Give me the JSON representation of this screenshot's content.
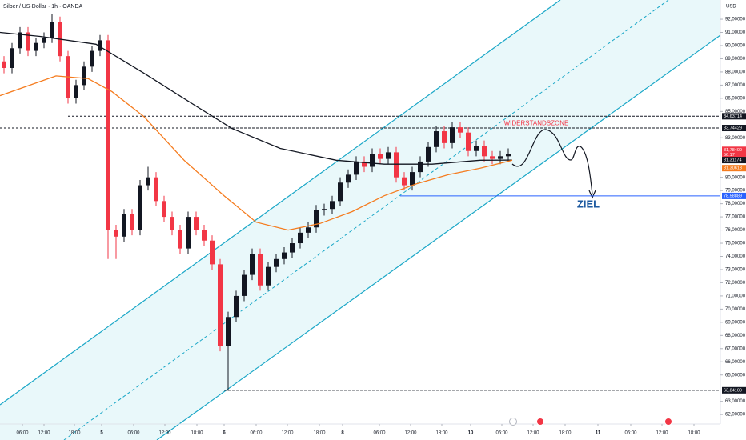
{
  "chart_data": {
    "type": "candlestick",
    "title": "Silber / US-Dollar · 1h · OANDA",
    "y_unit": "USD",
    "up_color": "#131722",
    "down_color": "#f23645",
    "x": [
      0,
      1,
      2,
      3,
      4,
      5,
      6,
      7,
      8,
      9,
      10,
      11,
      12,
      13,
      14,
      15,
      16,
      17,
      18,
      19,
      20,
      21,
      22,
      23,
      24,
      25,
      26,
      27,
      28,
      29,
      30,
      31,
      32,
      33,
      34,
      35,
      36,
      37,
      38,
      39,
      40,
      41,
      42,
      43,
      44,
      45,
      46,
      47,
      48,
      49,
      50,
      51,
      52,
      53,
      54,
      55,
      56,
      57,
      58,
      59,
      60,
      61,
      62,
      63
    ],
    "open": [
      88.8,
      88.3,
      89.8,
      91.0,
      89.6,
      90.2,
      90.6,
      91.8,
      89.2,
      86.0,
      87.0,
      88.4,
      89.6,
      90.4,
      76.0,
      75.5,
      77.2,
      76.0,
      79.4,
      80.0,
      78.2,
      77.0,
      76.0,
      74.6,
      77.0,
      76.0,
      75.2,
      73.4,
      67.2,
      69.4,
      71.0,
      72.6,
      74.2,
      71.8,
      73.2,
      73.8,
      74.3,
      75.0,
      75.8,
      76.2,
      77.5,
      77.6,
      78.2,
      79.6,
      80.2,
      81.2,
      80.8,
      81.8,
      81.4,
      81.9,
      80.0,
      79.4,
      80.4,
      81.2,
      82.3,
      83.5,
      82.6,
      83.8,
      83.4,
      82.0,
      82.4,
      81.6,
      81.4,
      81.6
    ],
    "high": [
      89.2,
      90.2,
      91.4,
      91.4,
      90.6,
      91.0,
      92.4,
      92.2,
      89.6,
      87.4,
      88.8,
      90.0,
      90.8,
      90.8,
      76.4,
      77.6,
      77.6,
      79.8,
      80.8,
      80.4,
      78.6,
      77.4,
      76.4,
      77.4,
      77.4,
      76.4,
      75.6,
      73.8,
      69.8,
      71.4,
      73.0,
      74.6,
      74.6,
      73.6,
      74.2,
      74.7,
      75.4,
      76.2,
      76.6,
      77.9,
      78.0,
      78.6,
      80.0,
      80.6,
      81.6,
      81.6,
      82.2,
      82.2,
      82.3,
      82.3,
      80.4,
      80.8,
      81.6,
      82.7,
      83.9,
      83.9,
      84.2,
      84.2,
      83.8,
      82.8,
      82.8,
      82.0,
      82.0,
      82.2
    ],
    "low": [
      87.9,
      87.9,
      89.4,
      89.2,
      89.2,
      89.8,
      90.2,
      88.8,
      85.6,
      85.6,
      86.6,
      88.0,
      89.2,
      73.8,
      73.8,
      75.1,
      75.6,
      75.6,
      79.0,
      77.8,
      76.6,
      75.6,
      74.2,
      74.2,
      75.6,
      74.8,
      73.0,
      66.8,
      63.8,
      69.0,
      70.6,
      72.2,
      71.4,
      71.4,
      72.8,
      73.4,
      73.9,
      74.6,
      75.4,
      75.8,
      77.1,
      77.2,
      77.8,
      79.2,
      79.8,
      80.4,
      80.4,
      81.0,
      81.0,
      79.6,
      79.0,
      79.0,
      80.0,
      80.8,
      81.9,
      82.2,
      82.2,
      83.0,
      81.6,
      81.6,
      81.2,
      81.0,
      81.0,
      81.2
    ],
    "close": [
      88.3,
      89.8,
      91.0,
      89.6,
      90.2,
      90.6,
      91.8,
      89.2,
      86.0,
      87.0,
      88.4,
      89.6,
      90.4,
      76.0,
      75.5,
      77.2,
      76.0,
      79.4,
      80.0,
      78.2,
      77.0,
      76.0,
      74.6,
      77.0,
      76.0,
      75.2,
      73.4,
      67.2,
      69.4,
      71.0,
      72.6,
      74.2,
      71.8,
      73.2,
      73.8,
      74.3,
      75.0,
      75.8,
      76.2,
      77.5,
      77.6,
      78.2,
      79.6,
      80.2,
      81.2,
      80.8,
      81.8,
      81.4,
      81.9,
      80.0,
      79.4,
      80.4,
      81.2,
      82.3,
      83.5,
      82.6,
      83.8,
      83.4,
      82.0,
      82.4,
      81.6,
      81.4,
      81.6,
      81.8
    ],
    "lines": [
      {
        "color": "#131722",
        "x": [
          -0.5,
          4.5,
          11.5,
          17.5,
          23.5,
          28.5,
          34.5,
          41.5,
          47.5,
          53.5,
          59.5,
          63.5
        ],
        "values": [
          91,
          90.7,
          90.1,
          87.9,
          85.6,
          83.7,
          82.2,
          81.3,
          81.0,
          81.0,
          81.3,
          81.31
        ]
      },
      {
        "color": "#f57c1f",
        "x": [
          -0.5,
          6.5,
          10.5,
          13.5,
          17.5,
          22.5,
          27.5,
          31.5,
          35.5,
          39.5,
          43.5,
          47.5,
          51.5,
          55.5,
          59.5,
          63.5
        ],
        "values": [
          86.2,
          87.7,
          87.5,
          86.5,
          84.6,
          81.3,
          78.6,
          76.6,
          76.0,
          76.5,
          77.4,
          78.6,
          79.5,
          80.2,
          80.7,
          81.3
        ]
      }
    ],
    "price_lines": [
      {
        "value": 84.63714,
        "label": "84,63714",
        "color": "#131722",
        "style": "dashed",
        "x_from": 8
      },
      {
        "value": 83.74429,
        "label": "83,74429",
        "color": "#131722",
        "style": "dashed",
        "x_from": -0.5
      },
      {
        "value": 78.58889,
        "label": "78,58889",
        "color": "#2962ff",
        "style": "solid",
        "x_from": 49.5
      },
      {
        "value": 63.84109,
        "label": "63,84109",
        "color": "#131722",
        "style": "dashed",
        "x_from": 27.5
      }
    ],
    "price_labels": [
      {
        "value": 81.784,
        "label": "81,78400",
        "countdown": "56:17",
        "color": "#f23645"
      },
      {
        "value": 81.31174,
        "label": "81,31174",
        "color": "#131722"
      },
      {
        "value": 81.30613,
        "label": "81,30613",
        "color": "#f57c1f"
      }
    ],
    "annotations": [
      {
        "text": "WIDERSTANDSZONE",
        "color": "#f23645",
        "x": 66.5,
        "y": 84.1
      },
      {
        "text": "ZIEL",
        "color": "#1e5aa0",
        "x": 73,
        "y": 77.9
      }
    ],
    "xlim": [
      -0.5,
      89.5
    ],
    "ylim": [
      61.28,
      93.46
    ],
    "xticks": [
      {
        "value": 2.3,
        "label": "06:00"
      },
      {
        "value": 5,
        "label": "12:00"
      },
      {
        "value": 8.8,
        "label": "18:00"
      },
      5,
      {
        "value": 16.2,
        "label": "06:00"
      },
      {
        "value": 20.1,
        "label": "12:00"
      },
      {
        "value": 24.1,
        "label": "18:00"
      },
      6,
      {
        "value": 31.5,
        "label": "06:00"
      },
      {
        "value": 35.4,
        "label": "12:00"
      },
      {
        "value": 39.4,
        "label": "18:00"
      },
      8,
      {
        "value": 46.9,
        "label": "06:00"
      },
      {
        "value": 50.8,
        "label": "12:00"
      },
      {
        "value": 54.7,
        "label": "18:00"
      },
      10,
      {
        "value": 62.2,
        "label": "06:00"
      },
      {
        "value": 66.1,
        "label": "12:00"
      },
      {
        "value": 70.1,
        "label": "18:00"
      },
      11,
      {
        "value": 78.3,
        "label": "06:00"
      },
      {
        "value": 82.2,
        "label": "12:00"
      },
      {
        "value": 86.2,
        "label": "18:00"
      }
    ],
    "xtick_positions": [
      2.3,
      5,
      8.8,
      12.2,
      16.2,
      20.1,
      24.1,
      27.5,
      31.5,
      35.4,
      39.4,
      42.3,
      46.9,
      50.8,
      54.7,
      58.3,
      62.2,
      66.1,
      70.1,
      74.2,
      78.3,
      82.2,
      86.2
    ],
    "yticks": [
      {
        "value": 62,
        "label": "62,00000"
      },
      {
        "value": 63,
        "label": "63,00000"
      },
      {
        "value": 65,
        "label": "65,00000"
      },
      {
        "value": 66,
        "label": "66,00000"
      },
      {
        "value": 67,
        "label": "67,00000"
      },
      {
        "value": 68,
        "label": "68,00000"
      },
      {
        "value": 69,
        "label": "69,00000"
      },
      {
        "value": 70,
        "label": "70,00000"
      },
      {
        "value": 71,
        "label": "71,00000"
      },
      {
        "value": 72,
        "label": "72,00000"
      },
      {
        "value": 73,
        "label": "73,00000"
      },
      {
        "value": 74,
        "label": "74,00000"
      },
      {
        "value": 75,
        "label": "75,00000"
      },
      {
        "value": 76,
        "label": "76,00000"
      },
      {
        "value": 77,
        "label": "77,00000"
      },
      {
        "value": 78,
        "label": "78,00000"
      },
      {
        "value": 79,
        "label": "79,00000"
      },
      {
        "value": 80,
        "label": "80,00000"
      },
      {
        "value": 83,
        "label": "83,00000"
      },
      {
        "value": 85,
        "label": "85,00000"
      },
      {
        "value": 86,
        "label": "86,00000"
      },
      {
        "value": 87,
        "label": "87,00000"
      },
      {
        "value": 88,
        "label": "88,00000"
      },
      {
        "value": 89,
        "label": "89,00000"
      },
      {
        "value": 90,
        "label": "90,00000"
      },
      {
        "value": 91,
        "label": "91,00000"
      },
      {
        "value": 92,
        "label": "92,00000"
      }
    ],
    "grid": false
  }
}
